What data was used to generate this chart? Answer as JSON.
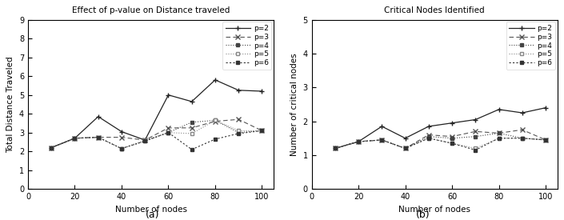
{
  "x": [
    10,
    20,
    30,
    40,
    50,
    60,
    70,
    80,
    90,
    100
  ],
  "dist_p2": [
    2.2,
    2.7,
    3.85,
    3.05,
    2.6,
    5.0,
    4.65,
    5.8,
    5.25,
    5.2
  ],
  "dist_p3": [
    2.2,
    2.7,
    2.75,
    2.75,
    2.6,
    3.25,
    3.25,
    3.6,
    3.7,
    3.1
  ],
  "dist_p4": [
    2.2,
    2.7,
    2.75,
    2.15,
    2.55,
    3.0,
    3.55,
    3.65,
    3.0,
    3.1
  ],
  "dist_p5": [
    2.2,
    2.7,
    2.75,
    2.15,
    2.6,
    3.0,
    2.95,
    3.65,
    3.1,
    3.1
  ],
  "dist_p6": [
    2.2,
    2.7,
    2.75,
    2.15,
    2.55,
    3.0,
    2.1,
    2.65,
    2.95,
    3.1
  ],
  "crit_p2": [
    1.2,
    1.4,
    1.85,
    1.5,
    1.85,
    1.95,
    2.05,
    2.35,
    2.25,
    2.4
  ],
  "crit_p3": [
    1.2,
    1.4,
    1.45,
    1.2,
    1.6,
    1.55,
    1.7,
    1.65,
    1.75,
    1.45
  ],
  "crit_p4": [
    1.2,
    1.4,
    1.45,
    1.2,
    1.55,
    1.5,
    1.55,
    1.65,
    1.5,
    1.45
  ],
  "crit_p5": [
    1.2,
    1.4,
    1.45,
    1.2,
    1.5,
    1.35,
    1.2,
    1.5,
    1.5,
    1.45
  ],
  "crit_p6": [
    1.2,
    1.4,
    1.45,
    1.2,
    1.5,
    1.35,
    1.15,
    1.5,
    1.5,
    1.45
  ],
  "title_a": "Effect of p-value on Distance traveled",
  "title_b": "Critical Nodes Identified",
  "xlabel": "Number of nodes",
  "ylabel_a": "Total Distance Traveled",
  "ylabel_b": "Number of critical nodes",
  "label_a": "(a)",
  "label_b": "(b)",
  "xlim": [
    0,
    105
  ],
  "ylim_a": [
    0,
    9
  ],
  "ylim_b": [
    0,
    5
  ],
  "xticks": [
    0,
    20,
    40,
    60,
    80,
    100
  ],
  "yticks_a": [
    0,
    1,
    2,
    3,
    4,
    5,
    6,
    7,
    8,
    9
  ],
  "yticks_b": [
    0,
    1,
    2,
    3,
    4,
    5
  ]
}
